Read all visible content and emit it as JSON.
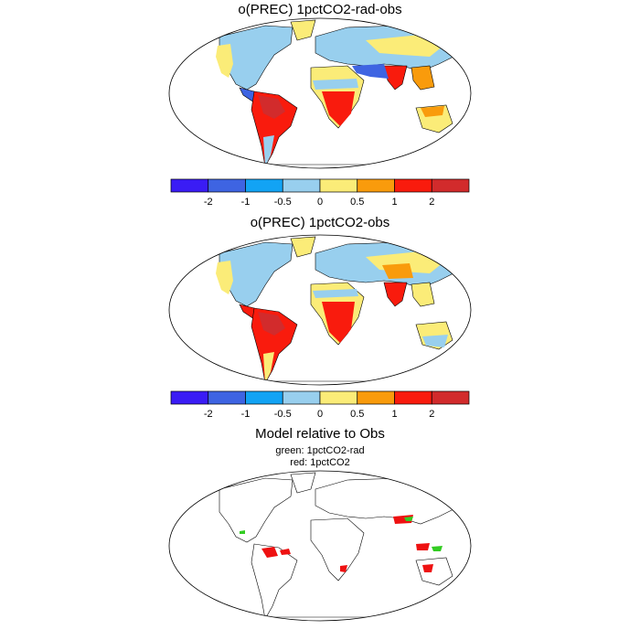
{
  "panels": [
    {
      "title": "o(PREC) 1pctCO2-rad-obs"
    },
    {
      "title": "o(PREC) 1pctCO2-obs"
    },
    {
      "title": "Model relative to Obs",
      "legend": [
        "green: 1pctCO2-rad",
        "red: 1pctCO2"
      ]
    }
  ],
  "colorbar": {
    "colors": [
      "#3a1cf5",
      "#3e64e2",
      "#12a3f4",
      "#98cfee",
      "#fbec78",
      "#f99b0c",
      "#f91b0d",
      "#d22b2c"
    ],
    "tick_labels": [
      "-2",
      "-1",
      "-0.5",
      "0",
      "0.5",
      "1",
      "2"
    ]
  },
  "map_colors": {
    "land_wet": "#98cfee",
    "land_dry": "#fbec78",
    "land_orange": "#f99b0c",
    "land_red": "#f91b0d",
    "land_darkred": "#d22b2c",
    "land_blue": "#3e64e2",
    "marker_green": "#33cc22",
    "marker_red": "#ee1111"
  }
}
